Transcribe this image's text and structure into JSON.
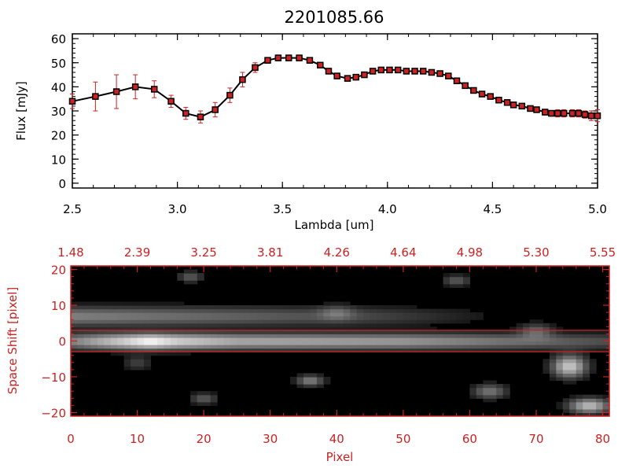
{
  "chart_data": [
    {
      "type": "line",
      "title": "2201085.66",
      "xlabel": "Lambda [um]",
      "ylabel": "Flux [mJy]",
      "xlim": [
        2.5,
        5.0
      ],
      "ylim": [
        -2,
        62
      ],
      "x_ticks": [
        2.5,
        3.0,
        3.5,
        4.0,
        4.5,
        5.0
      ],
      "x_tick_labels": [
        "2.5",
        "3.0",
        "3.5",
        "4.0",
        "4.5",
        "5.0"
      ],
      "y_ticks": [
        0,
        10,
        20,
        30,
        40,
        50,
        60
      ],
      "y_tick_labels": [
        "0",
        "10",
        "20",
        "30",
        "40",
        "50",
        "60"
      ],
      "line_color": "#000000",
      "marker_color": "#cc2222",
      "errorbar_color": "#cc2222",
      "series": [
        {
          "name": "Flux",
          "x": [
            2.5,
            2.61,
            2.71,
            2.8,
            2.89,
            2.97,
            3.04,
            3.11,
            3.18,
            3.25,
            3.31,
            3.37,
            3.43,
            3.48,
            3.53,
            3.58,
            3.63,
            3.68,
            3.72,
            3.76,
            3.81,
            3.85,
            3.89,
            3.93,
            3.97,
            4.01,
            4.05,
            4.09,
            4.13,
            4.17,
            4.21,
            4.25,
            4.29,
            4.33,
            4.37,
            4.41,
            4.45,
            4.49,
            4.53,
            4.57,
            4.6,
            4.64,
            4.68,
            4.71,
            4.75,
            4.78,
            4.81,
            4.84,
            4.88,
            4.91,
            4.94,
            4.97,
            5.0
          ],
          "y": [
            34,
            36,
            38,
            40,
            39,
            34,
            29,
            27.5,
            30.5,
            36.5,
            43,
            48,
            51,
            52,
            52,
            52,
            51,
            49,
            46.5,
            44.5,
            43.5,
            44,
            45,
            46.5,
            47,
            47,
            47,
            46.5,
            46.5,
            46.5,
            46,
            45.5,
            44.5,
            42.5,
            40.5,
            38.5,
            37,
            36,
            34.5,
            33.5,
            32.5,
            32,
            31,
            30.5,
            29.5,
            29,
            29,
            29,
            29,
            29,
            28.5,
            28,
            28
          ],
          "err": [
            3,
            6,
            7,
            5,
            3.5,
            2.5,
            2.5,
            2.5,
            3,
            3,
            3,
            2,
            1.2,
            1.2,
            1.2,
            1.2,
            1.2,
            1,
            1,
            1,
            1,
            1,
            1,
            1,
            1,
            1,
            1,
            1,
            1,
            1,
            1,
            1,
            1,
            1,
            1,
            1,
            1,
            1,
            1,
            1,
            1,
            1,
            1,
            1,
            1.2,
            1.2,
            1.5,
            1.5,
            1.5,
            1.5,
            1.5,
            2,
            2.5
          ]
        }
      ]
    },
    {
      "type": "heatmap",
      "title": "",
      "xlabel": "Pixel",
      "ylabel": "Space Shift [pixel]",
      "xlim": [
        0,
        81
      ],
      "ylim": [
        -21,
        21
      ],
      "x_ticks": [
        0,
        10,
        20,
        30,
        40,
        50,
        60,
        70,
        80
      ],
      "x_tick_labels": [
        "0",
        "10",
        "20",
        "30",
        "40",
        "50",
        "60",
        "70",
        "80"
      ],
      "y_ticks": [
        -20,
        -10,
        0,
        10,
        20
      ],
      "y_tick_labels": [
        "−20",
        "−10",
        "0",
        "10",
        "20"
      ],
      "top_axis_labels": [
        "1.48",
        "2.39",
        "3.25",
        "3.81",
        "4.26",
        "4.64",
        "4.98",
        "5.30",
        "5.55"
      ],
      "extraction_aperture_rows": [
        -3,
        3
      ],
      "axis_color": "#cc2222",
      "colormap": "gray",
      "features": {
        "trace": {
          "center": 0,
          "width": 2.2,
          "segments": [
            [
              0,
              0.45
            ],
            [
              8,
              0.8
            ],
            [
              12,
              1.0
            ],
            [
              16,
              0.8
            ],
            [
              25,
              0.62
            ],
            [
              50,
              0.55
            ],
            [
              65,
              0.4
            ],
            [
              75,
              0.3
            ],
            [
              81,
              0.25
            ]
          ]
        },
        "halo": {
          "center": 7,
          "width": 2.6,
          "segments": [
            [
              0,
              0.45
            ],
            [
              20,
              0.35
            ],
            [
              45,
              0.22
            ],
            [
              60,
              0.08
            ],
            [
              70,
              0.0
            ]
          ]
        },
        "blobs": [
          {
            "x": 18,
            "y": 18,
            "amp": 0.3,
            "sx": 1.8,
            "sy": 1.5
          },
          {
            "x": 40,
            "y": 8,
            "amp": 0.22,
            "sx": 2.5,
            "sy": 2.0
          },
          {
            "x": 58,
            "y": 17,
            "amp": 0.3,
            "sx": 2.0,
            "sy": 1.5
          },
          {
            "x": 70,
            "y": 3,
            "amp": 0.3,
            "sx": 2.5,
            "sy": 2.0
          },
          {
            "x": 75,
            "y": -7,
            "amp": 0.75,
            "sx": 2.5,
            "sy": 3.0
          },
          {
            "x": 36,
            "y": -11,
            "amp": 0.45,
            "sx": 2.0,
            "sy": 1.5
          },
          {
            "x": 20,
            "y": -16,
            "amp": 0.3,
            "sx": 2.0,
            "sy": 1.5
          },
          {
            "x": 63,
            "y": -14,
            "amp": 0.4,
            "sx": 2.5,
            "sy": 2.0
          },
          {
            "x": 78,
            "y": -18,
            "amp": 0.7,
            "sx": 3.0,
            "sy": 2.0
          },
          {
            "x": 10,
            "y": -6,
            "amp": 0.2,
            "sx": 2.0,
            "sy": 2.0
          }
        ]
      }
    }
  ]
}
